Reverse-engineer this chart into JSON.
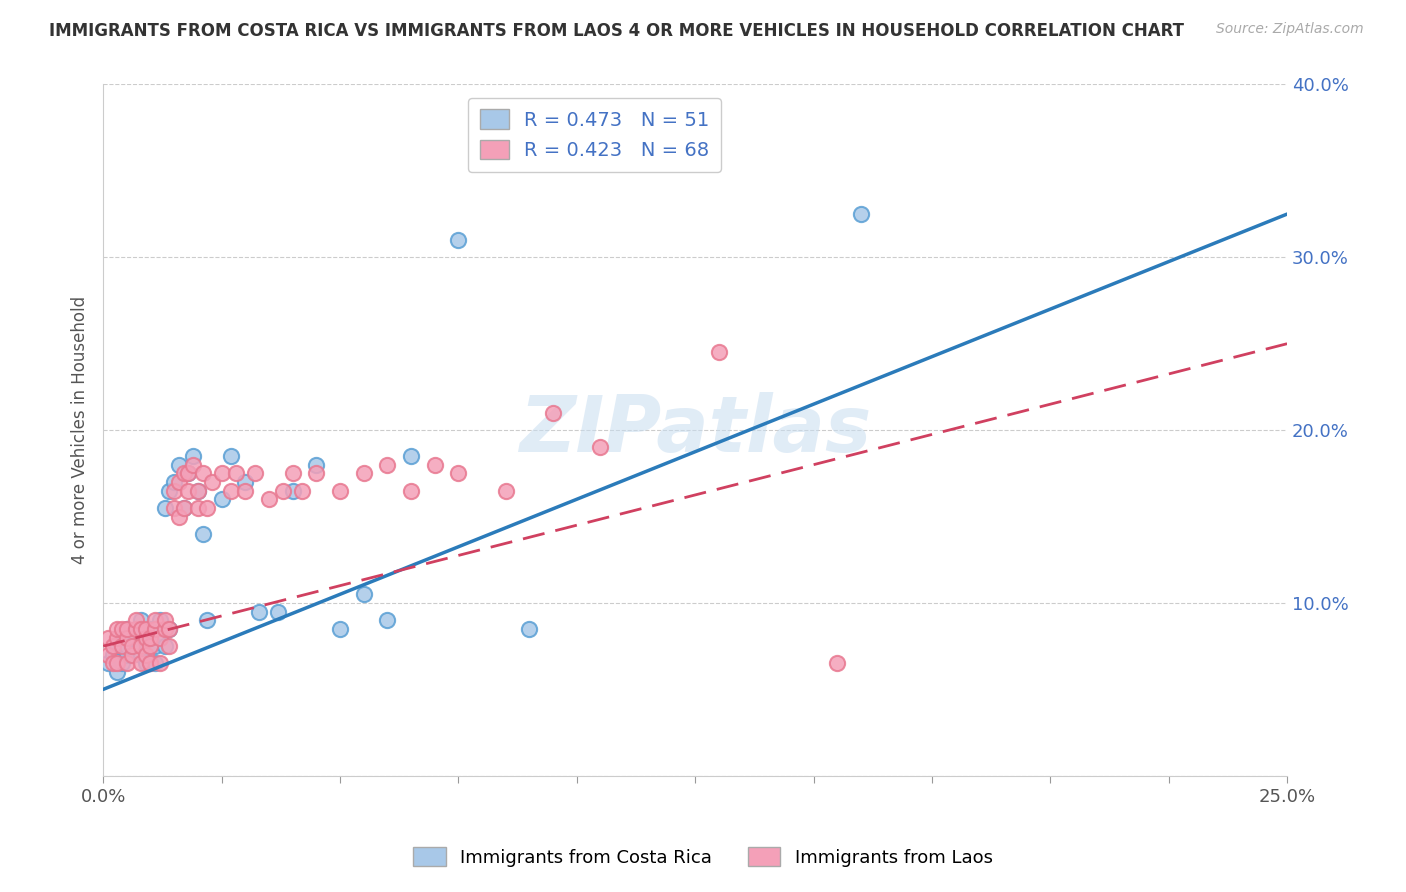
{
  "title": "IMMIGRANTS FROM COSTA RICA VS IMMIGRANTS FROM LAOS 4 OR MORE VEHICLES IN HOUSEHOLD CORRELATION CHART",
  "source": "Source: ZipAtlas.com",
  "ylabel": "4 or more Vehicles in Household",
  "xlim": [
    0.0,
    0.25
  ],
  "ylim": [
    0.0,
    0.4
  ],
  "xticks": [
    0.0,
    0.025,
    0.05,
    0.075,
    0.1,
    0.125,
    0.15,
    0.175,
    0.2,
    0.225,
    0.25
  ],
  "yticks": [
    0.0,
    0.1,
    0.2,
    0.3,
    0.4
  ],
  "xtick_labels": [
    "0.0%",
    "",
    "",
    "",
    "",
    "",
    "",
    "",
    "",
    "",
    "25.0%"
  ],
  "ytick_labels": [
    "",
    "10.0%",
    "20.0%",
    "30.0%",
    "40.0%"
  ],
  "blue_R": 0.473,
  "blue_N": 51,
  "pink_R": 0.423,
  "pink_N": 68,
  "blue_color": "#a8c8e8",
  "pink_color": "#f4a0b8",
  "blue_edge_color": "#5a9fd4",
  "pink_edge_color": "#e87890",
  "blue_line_color": "#2b7bba",
  "pink_line_color": "#d04060",
  "legend_label_blue": "Immigrants from Costa Rica",
  "legend_label_pink": "Immigrants from Laos",
  "watermark": "ZIPatlas",
  "blue_points_x": [
    0.001,
    0.002,
    0.003,
    0.003,
    0.004,
    0.004,
    0.005,
    0.005,
    0.005,
    0.006,
    0.006,
    0.007,
    0.007,
    0.008,
    0.008,
    0.008,
    0.009,
    0.009,
    0.01,
    0.01,
    0.01,
    0.011,
    0.011,
    0.012,
    0.012,
    0.013,
    0.013,
    0.014,
    0.014,
    0.015,
    0.016,
    0.017,
    0.018,
    0.019,
    0.02,
    0.021,
    0.022,
    0.025,
    0.027,
    0.03,
    0.033,
    0.037,
    0.04,
    0.045,
    0.05,
    0.055,
    0.06,
    0.065,
    0.075,
    0.09,
    0.16
  ],
  "blue_points_y": [
    0.065,
    0.07,
    0.06,
    0.075,
    0.065,
    0.08,
    0.07,
    0.075,
    0.085,
    0.075,
    0.08,
    0.08,
    0.085,
    0.07,
    0.085,
    0.09,
    0.065,
    0.075,
    0.065,
    0.075,
    0.085,
    0.075,
    0.065,
    0.08,
    0.09,
    0.075,
    0.155,
    0.085,
    0.165,
    0.17,
    0.18,
    0.155,
    0.175,
    0.185,
    0.165,
    0.14,
    0.09,
    0.16,
    0.185,
    0.17,
    0.095,
    0.095,
    0.165,
    0.18,
    0.085,
    0.105,
    0.09,
    0.185,
    0.31,
    0.085,
    0.325
  ],
  "pink_points_x": [
    0.001,
    0.001,
    0.002,
    0.002,
    0.003,
    0.003,
    0.003,
    0.004,
    0.004,
    0.005,
    0.005,
    0.005,
    0.006,
    0.006,
    0.007,
    0.007,
    0.008,
    0.008,
    0.008,
    0.009,
    0.009,
    0.009,
    0.01,
    0.01,
    0.01,
    0.011,
    0.011,
    0.012,
    0.012,
    0.013,
    0.013,
    0.014,
    0.014,
    0.015,
    0.015,
    0.016,
    0.016,
    0.017,
    0.017,
    0.018,
    0.018,
    0.019,
    0.02,
    0.02,
    0.021,
    0.022,
    0.023,
    0.025,
    0.027,
    0.028,
    0.03,
    0.032,
    0.035,
    0.038,
    0.04,
    0.042,
    0.045,
    0.05,
    0.055,
    0.06,
    0.065,
    0.07,
    0.075,
    0.085,
    0.095,
    0.105,
    0.13,
    0.155
  ],
  "pink_points_y": [
    0.07,
    0.08,
    0.065,
    0.075,
    0.065,
    0.08,
    0.085,
    0.075,
    0.085,
    0.065,
    0.08,
    0.085,
    0.07,
    0.075,
    0.085,
    0.09,
    0.065,
    0.075,
    0.085,
    0.07,
    0.08,
    0.085,
    0.065,
    0.075,
    0.08,
    0.085,
    0.09,
    0.065,
    0.08,
    0.085,
    0.09,
    0.075,
    0.085,
    0.155,
    0.165,
    0.15,
    0.17,
    0.155,
    0.175,
    0.165,
    0.175,
    0.18,
    0.155,
    0.165,
    0.175,
    0.155,
    0.17,
    0.175,
    0.165,
    0.175,
    0.165,
    0.175,
    0.16,
    0.165,
    0.175,
    0.165,
    0.175,
    0.165,
    0.175,
    0.18,
    0.165,
    0.18,
    0.175,
    0.165,
    0.21,
    0.19,
    0.245,
    0.065
  ],
  "blue_line_x0": 0.0,
  "blue_line_y0": 0.05,
  "blue_line_x1": 0.25,
  "blue_line_y1": 0.325,
  "pink_line_x0": 0.0,
  "pink_line_y0": 0.075,
  "pink_line_x1": 0.25,
  "pink_line_y1": 0.25
}
